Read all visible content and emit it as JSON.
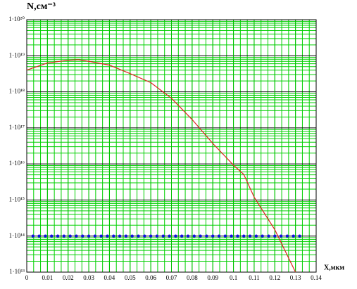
{
  "chart_data": {
    "type": "line",
    "y_label": "N,см⁻³",
    "x_label": "X,мкм",
    "log_y": true,
    "grid": true,
    "xlim": [
      0,
      0.14
    ],
    "xticks": [
      0,
      0.01,
      0.02,
      0.03,
      0.04,
      0.05,
      0.06,
      0.07,
      0.08,
      0.09,
      0.1,
      0.11,
      0.12,
      0.13,
      0.14
    ],
    "ylim": [
      10000000000000.0,
      1e+20
    ],
    "yticks": [
      {
        "value": 10000000000000.0,
        "label": "1·10¹³"
      },
      {
        "value": 100000000000000.0,
        "label": "1·10¹⁴"
      },
      {
        "value": 1000000000000000.0,
        "label": "1·10¹⁵"
      },
      {
        "value": 1e+16,
        "label": "1·10¹⁶"
      },
      {
        "value": 1e+17,
        "label": "1·10¹⁷"
      },
      {
        "value": 1e+18,
        "label": "1·10¹⁸"
      },
      {
        "value": 1e+19,
        "label": "1·10¹⁹"
      },
      {
        "value": 1e+20,
        "label": "1·10²⁰"
      }
    ],
    "series": [
      {
        "color": "#e02020",
        "marker": false,
        "x": [
          0,
          0.01,
          0.02,
          0.025,
          0.03,
          0.04,
          0.05,
          0.06,
          0.07,
          0.08,
          0.09,
          0.1,
          0.105,
          0.11,
          0.12,
          0.13
        ],
        "values": [
          4e+18,
          6.3e+18,
          7.5e+18,
          7.8e+18,
          7e+18,
          5.5e+18,
          3.2e+18,
          1.8e+18,
          6.6e+17,
          1.7e+17,
          3.7e+16,
          9300000000000000.0,
          5100000000000000.0,
          1200000000000000.0,
          150000000000000.0,
          10000000000000.0
        ]
      },
      {
        "color": "#1010e0",
        "marker": true,
        "x": [
          0.003,
          0.006,
          0.009,
          0.012,
          0.015,
          0.018,
          0.021,
          0.024,
          0.027,
          0.03,
          0.033,
          0.036,
          0.039,
          0.042,
          0.045,
          0.048,
          0.051,
          0.054,
          0.057,
          0.06,
          0.063,
          0.066,
          0.069,
          0.072,
          0.075,
          0.078,
          0.081,
          0.084,
          0.087,
          0.09,
          0.093,
          0.096,
          0.099,
          0.102,
          0.105,
          0.108,
          0.111,
          0.114,
          0.117,
          0.12,
          0.123,
          0.126,
          0.129,
          0.132
        ],
        "values": [
          100000000000000.0,
          100000000000000.0,
          100000000000000.0,
          100000000000000.0,
          100000000000000.0,
          100000000000000.0,
          100000000000000.0,
          100000000000000.0,
          100000000000000.0,
          100000000000000.0,
          100000000000000.0,
          100000000000000.0,
          100000000000000.0,
          100000000000000.0,
          100000000000000.0,
          100000000000000.0,
          100000000000000.0,
          100000000000000.0,
          100000000000000.0,
          100000000000000.0,
          100000000000000.0,
          100000000000000.0,
          100000000000000.0,
          100000000000000.0,
          100000000000000.0,
          100000000000000.0,
          100000000000000.0,
          100000000000000.0,
          100000000000000.0,
          100000000000000.0,
          100000000000000.0,
          100000000000000.0,
          100000000000000.0,
          100000000000000.0,
          100000000000000.0,
          100000000000000.0,
          100000000000000.0,
          100000000000000.0,
          100000000000000.0,
          100000000000000.0,
          100000000000000.0,
          100000000000000.0,
          100000000000000.0,
          100000000000000.0
        ]
      }
    ]
  }
}
